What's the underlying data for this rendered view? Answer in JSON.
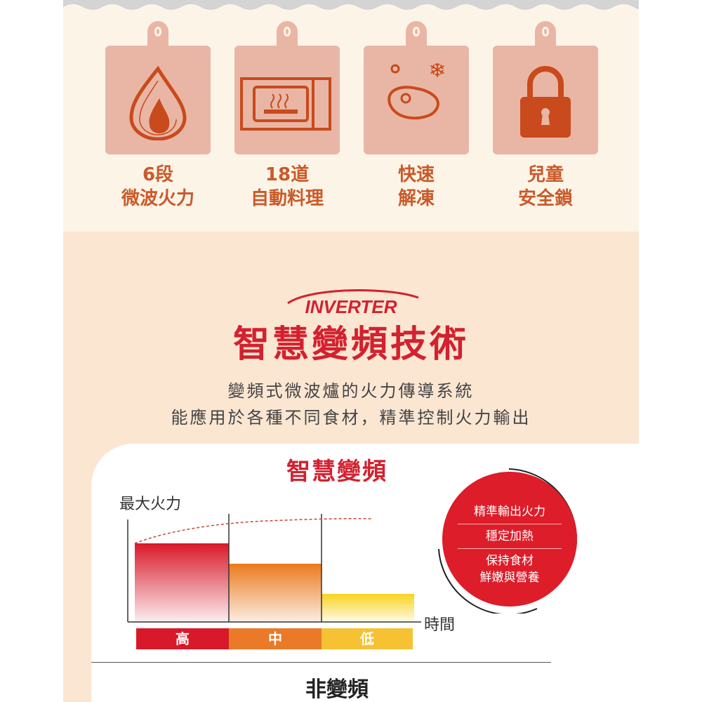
{
  "features": [
    {
      "icon": "flame-icon",
      "line1": "6段",
      "line2": "微波火力"
    },
    {
      "icon": "microwave-icon",
      "line1": "18道",
      "line2": "自動料理"
    },
    {
      "icon": "thaw-meat-icon",
      "line1": "快速",
      "line2": "解凍"
    },
    {
      "icon": "padlock-icon",
      "line1": "兒童",
      "line2": "安全鎖"
    }
  ],
  "logo": "INVERTER",
  "title": "智慧變頻技術",
  "subtitle1": "變頻式微波爐的火力傳導系統",
  "subtitle2": "能應用於各種不同食材，精準控制火力輸出",
  "diagram": {
    "title": "智慧變頻",
    "y_label": "最大火力",
    "x_label": "時間",
    "levels": [
      {
        "label": "高",
        "color": "#d8192a"
      },
      {
        "label": "中",
        "color": "#ea7a28"
      },
      {
        "label": "低",
        "color": "#f6c132"
      }
    ],
    "circle": [
      "精準輸出火力",
      "穩定加熱",
      "保持食材",
      "鮮嫩與營養"
    ],
    "bottom_title": "非變頻"
  }
}
